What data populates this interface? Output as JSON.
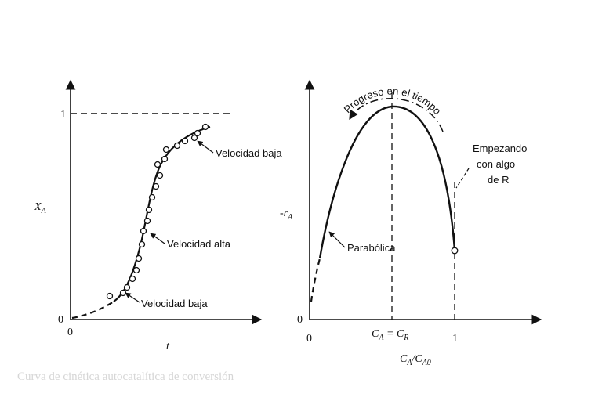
{
  "left_panel": {
    "y_axis_label": "X",
    "y_axis_label_sub": "A",
    "x_axis_label": "t",
    "tick_zero_y": "0",
    "tick_one_y": "1",
    "tick_zero_x": "0",
    "annotations": {
      "slow_top": "Velocidad baja",
      "fast": "Velocidad alta",
      "slow_bottom": "Velocidad baja"
    }
  },
  "right_panel": {
    "y_axis_label": "-r",
    "y_axis_label_sub": "A",
    "x_axis_label": "C",
    "x_axis_label_sub": "A",
    "x_axis_label_sep": "/C",
    "x_axis_label_sub2": "A0",
    "tick_zero_y": "0",
    "tick_zero_x": "0",
    "tick_one_x": "1",
    "peak_label_1": "C",
    "peak_label_1_sub": "A",
    "peak_label_eq": " = C",
    "peak_label_2_sub": "R",
    "annotations": {
      "progress": "Progreso en el tiempo",
      "start_line1": "Empezando",
      "start_line2": "con algo",
      "start_line3": "de R",
      "parabolic": "Parabólica"
    }
  },
  "caption": "Curva de cinética autocatalítica de conversión"
}
